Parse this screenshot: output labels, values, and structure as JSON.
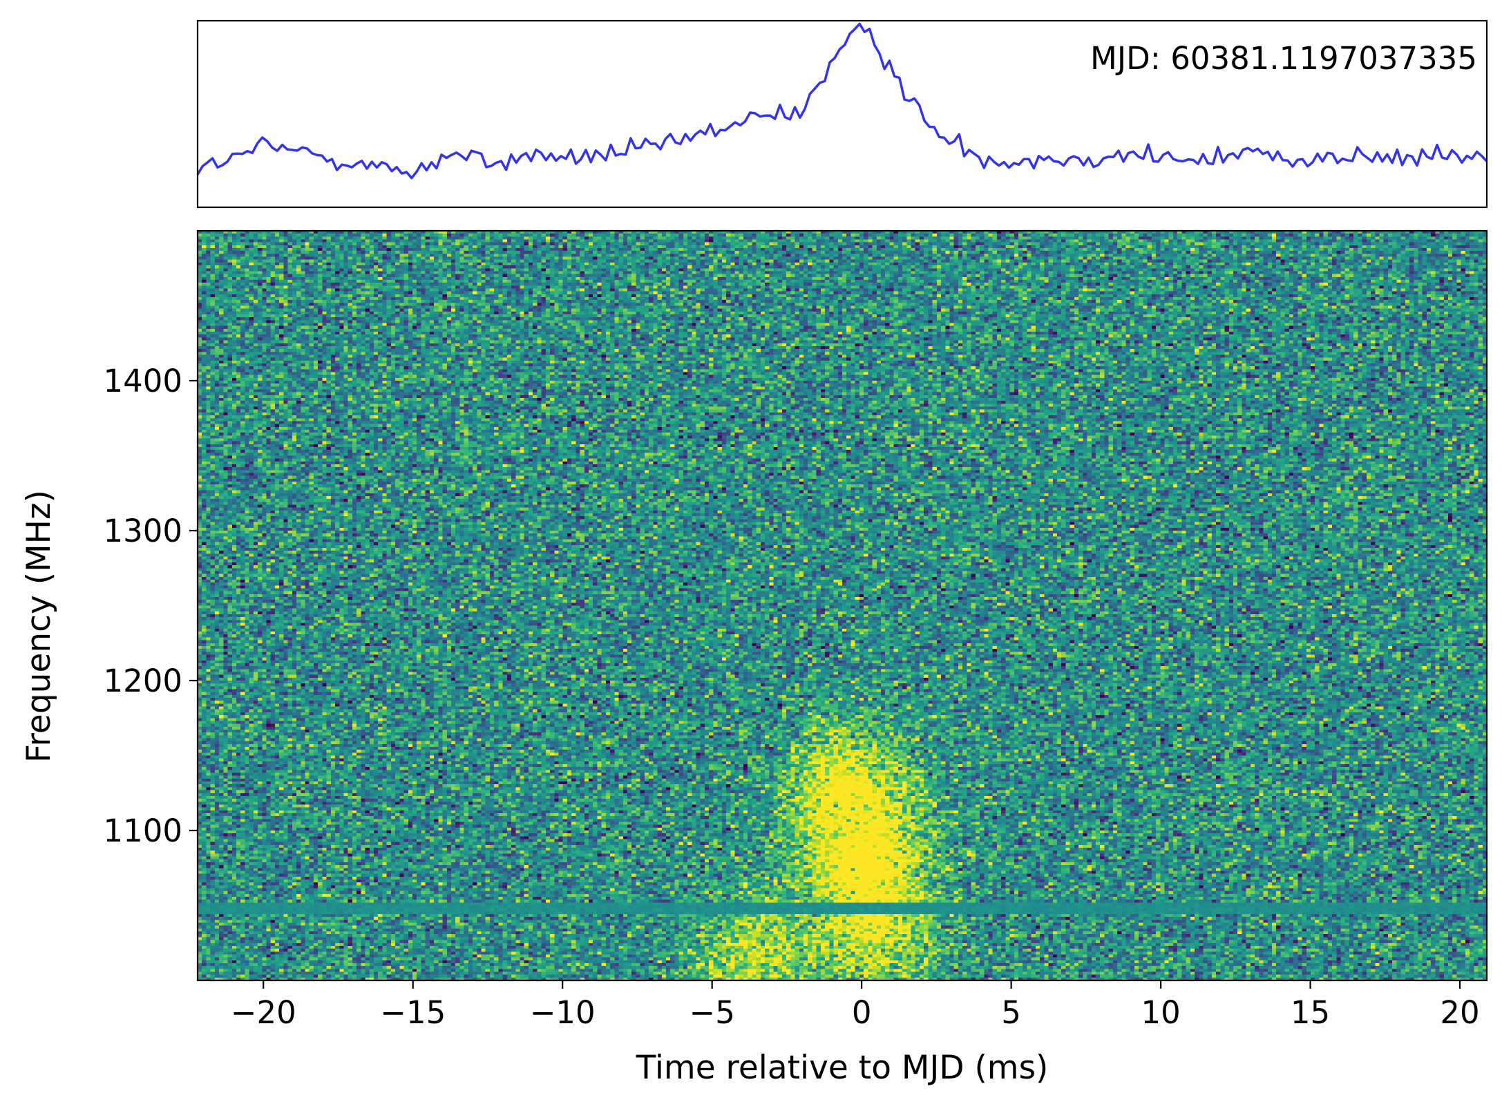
{
  "chart_data": [
    {
      "panel": "profile",
      "type": "line",
      "annotation": "MJD: 60381.1197037335",
      "xlim": [
        -22.2,
        20.9
      ],
      "ylim": [
        -0.12,
        1.05
      ],
      "ticks": "hidden",
      "series": [
        {
          "color": "#3333ee",
          "x": [
            -22.2,
            -21.0,
            -20.0,
            -19.0,
            -18.0,
            -17.0,
            -16.0,
            -15.0,
            -14.0,
            -13.0,
            -12.0,
            -11.0,
            -10.0,
            -9.0,
            -8.0,
            -7.0,
            -6.0,
            -5.0,
            -4.0,
            -3.0,
            -2.0,
            -1.5,
            -1.0,
            -0.5,
            0.0,
            0.5,
            1.0,
            1.5,
            2.0,
            2.5,
            3.0,
            3.5,
            4.0,
            5.0,
            6.0,
            7.0,
            8.0,
            9.0,
            10.0,
            11.0,
            12.0,
            13.0,
            14.0,
            15.0,
            16.0,
            17.0,
            18.0,
            19.0,
            20.0,
            20.9
          ],
          "y": [
            0.12,
            0.18,
            0.27,
            0.23,
            0.21,
            0.16,
            0.12,
            0.1,
            0.2,
            0.19,
            0.15,
            0.22,
            0.18,
            0.2,
            0.23,
            0.25,
            0.3,
            0.35,
            0.42,
            0.45,
            0.5,
            0.62,
            0.8,
            0.9,
            1.0,
            0.92,
            0.75,
            0.6,
            0.45,
            0.35,
            0.28,
            0.25,
            0.2,
            0.17,
            0.19,
            0.18,
            0.2,
            0.22,
            0.19,
            0.16,
            0.2,
            0.23,
            0.2,
            0.18,
            0.2,
            0.19,
            0.18,
            0.2,
            0.2,
            0.19
          ]
        }
      ]
    },
    {
      "panel": "dynamic-spectrum",
      "type": "heatmap",
      "colormap": "viridis",
      "xlabel": "Time relative to MJD (ms)",
      "ylabel": "Frequency (MHz)",
      "xlim": [
        -22.2,
        20.9
      ],
      "ylim": [
        1000,
        1500
      ],
      "xticks": [
        -20,
        -15,
        -10,
        -5,
        0,
        5,
        10,
        15,
        20
      ],
      "xtick_labels": [
        "−20",
        "−15",
        "−10",
        "−5",
        "0",
        "5",
        "10",
        "15",
        "20"
      ],
      "yticks": [
        1100,
        1200,
        1300,
        1400
      ],
      "ytick_labels": [
        "1100",
        "1200",
        "1300",
        "1400"
      ],
      "burst_components": [
        {
          "time_ms": -0.5,
          "freq_mhz": 1130,
          "amplitude": 1.0
        },
        {
          "time_ms": 0.2,
          "freq_mhz": 1075,
          "amplitude": 1.1
        },
        {
          "time_ms": 0.5,
          "freq_mhz": 1025,
          "amplitude": 0.6
        },
        {
          "time_ms": -3.5,
          "freq_mhz": 1015,
          "amplitude": 0.7
        }
      ],
      "masked_channels_mhz": [
        1048
      ]
    }
  ]
}
